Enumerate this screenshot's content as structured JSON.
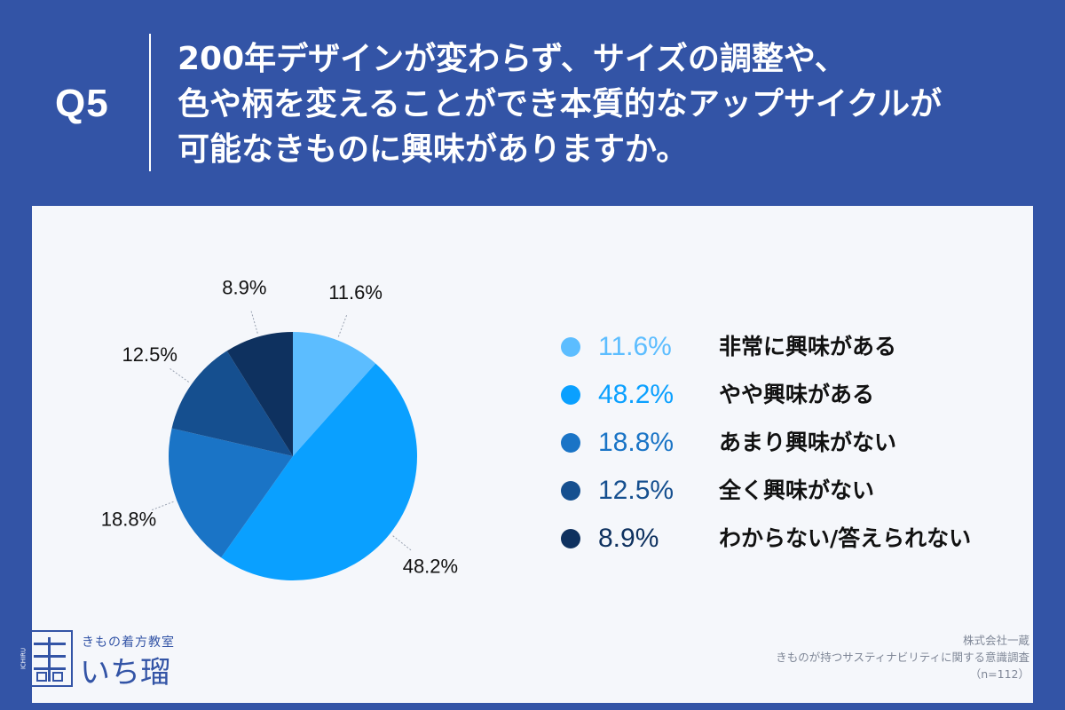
{
  "question": {
    "label": "Q5",
    "lines": [
      "200年デザインが変わらず、サイズの調整や、",
      "色や柄を変えることができ本質的なアップサイクルが",
      "可能なきものに興味がありますか。"
    ]
  },
  "chart_data": {
    "type": "pie",
    "slices": [
      {
        "label": "非常に興味がある",
        "value": 11.6,
        "display": "11.6%",
        "color": "#5cbdff"
      },
      {
        "label": "やや興味がある",
        "value": 48.2,
        "display": "48.2%",
        "color": "#0aa0ff"
      },
      {
        "label": "あまり興味がない",
        "value": 18.8,
        "display": "18.8%",
        "color": "#1a74c6"
      },
      {
        "label": "全く興味がない",
        "value": 12.5,
        "display": "12.5%",
        "color": "#154f8f"
      },
      {
        "label": "わからない/答えられない",
        "value": 8.9,
        "display": "8.9%",
        "color": "#0e315f"
      }
    ],
    "legend_position": "right",
    "start_angle": "12 o'clock, clockwise"
  },
  "legend": {
    "value_colors": [
      "#5cbdff",
      "#0aa0ff",
      "#1a74c6",
      "#154f8f",
      "#0e315f"
    ]
  },
  "logo": {
    "subtitle": "きもの着方教室",
    "name": "いち瑠",
    "mark_text": "ICHIRU"
  },
  "footer": {
    "company": "株式会社一蔵",
    "survey": "きものが持つサスティナビリティに関する意識調査",
    "sample": "（n=112）"
  },
  "colors": {
    "header_bg": "#3354a6",
    "panel_bg": "#f5f7fb",
    "text_dark": "#111111"
  }
}
